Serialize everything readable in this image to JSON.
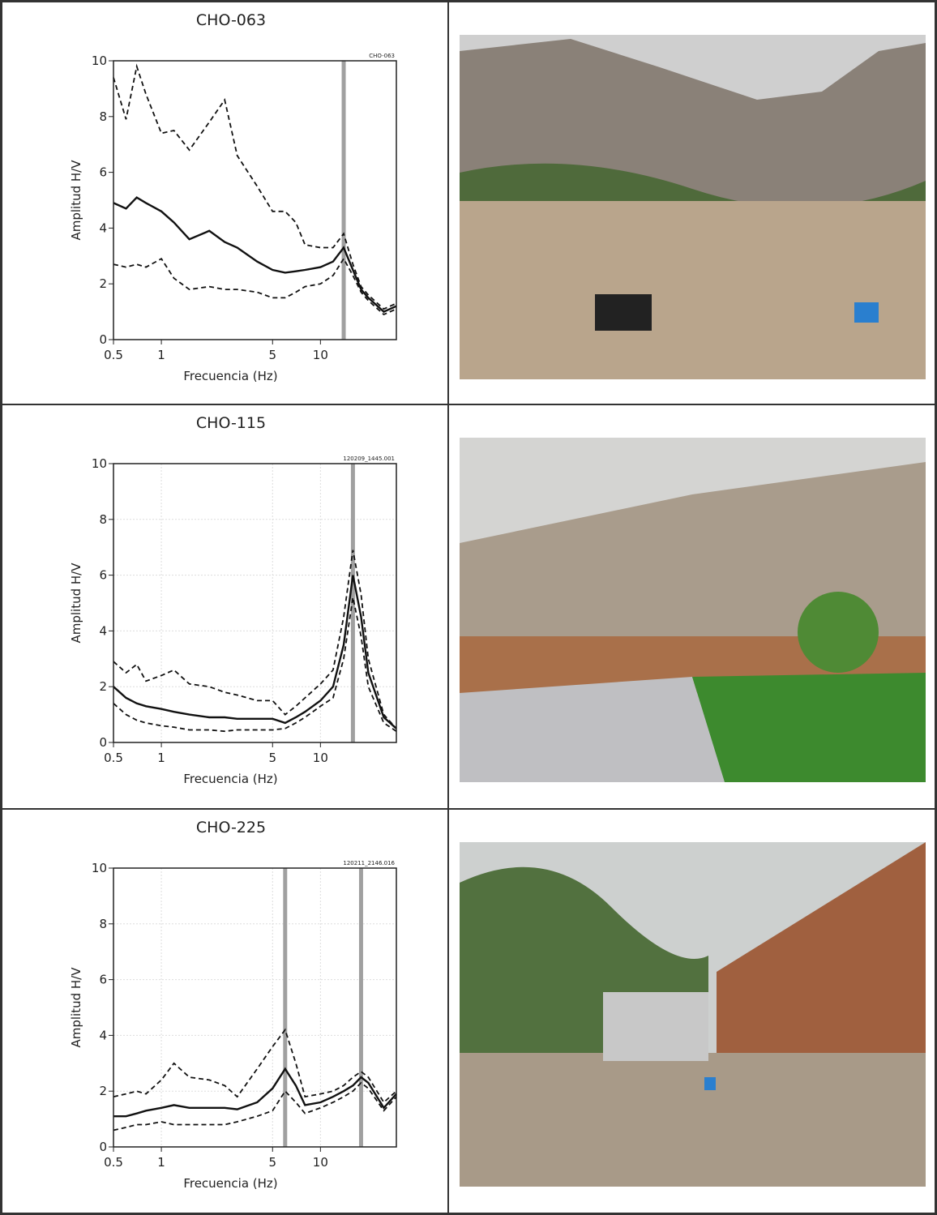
{
  "chart_data": [
    {
      "type": "line",
      "title": "CHO-063",
      "corner_label": "CHO-063",
      "x_label": "Frecuencia (Hz)",
      "y_label": "Amplitud H/V",
      "x": [
        0.5,
        0.6,
        0.7,
        0.8,
        1,
        1.2,
        1.5,
        2,
        2.5,
        3,
        4,
        5,
        6,
        7,
        8,
        10,
        12,
        14,
        16,
        18,
        20,
        25,
        30
      ],
      "series": [
        {
          "color": "#111111",
          "dashed": false,
          "values": [
            4.9,
            4.7,
            5.1,
            4.9,
            4.6,
            4.2,
            3.6,
            3.9,
            3.5,
            3.3,
            2.8,
            2.5,
            2.4,
            2.45,
            2.5,
            2.6,
            2.8,
            3.3,
            2.5,
            1.8,
            1.5,
            1.0,
            1.2
          ]
        },
        {
          "color": "#111111",
          "dashed": true,
          "values": [
            9.4,
            7.9,
            9.8,
            8.8,
            7.4,
            7.5,
            6.8,
            7.8,
            8.6,
            6.6,
            5.5,
            4.6,
            4.6,
            4.2,
            3.4,
            3.3,
            3.3,
            3.8,
            2.7,
            1.9,
            1.6,
            1.1,
            1.3
          ]
        },
        {
          "color": "#111111",
          "dashed": true,
          "values": [
            2.7,
            2.6,
            2.7,
            2.6,
            2.9,
            2.2,
            1.8,
            1.9,
            1.8,
            1.8,
            1.7,
            1.5,
            1.5,
            1.7,
            1.9,
            2.0,
            2.3,
            2.9,
            2.3,
            1.7,
            1.4,
            0.9,
            1.1
          ]
        }
      ],
      "peak_lines": [
        14
      ],
      "peak_color": "#a0a0a0",
      "log_x": true,
      "grid": false,
      "xlim": [
        0.5,
        30
      ],
      "ylim": [
        0,
        10
      ],
      "xticks": [
        0.5,
        1,
        5,
        10
      ],
      "yticks": [
        0,
        2,
        4,
        6,
        8,
        10
      ]
    },
    {
      "type": "line",
      "title": "CHO-115",
      "corner_label": "120209_1445.001",
      "x_label": "Frecuencia (Hz)",
      "y_label": "Amplitud H/V",
      "x": [
        0.5,
        0.6,
        0.7,
        0.8,
        1,
        1.2,
        1.5,
        2,
        2.5,
        3,
        4,
        5,
        6,
        7,
        8,
        10,
        12,
        14,
        16,
        18,
        20,
        25,
        30
      ],
      "series": [
        {
          "color": "#111111",
          "dashed": false,
          "values": [
            2.0,
            1.6,
            1.4,
            1.3,
            1.2,
            1.1,
            1.0,
            0.9,
            0.9,
            0.85,
            0.85,
            0.85,
            0.7,
            0.9,
            1.1,
            1.5,
            2.0,
            3.5,
            6.0,
            4.5,
            2.5,
            0.9,
            0.5
          ]
        },
        {
          "color": "#111111",
          "dashed": true,
          "values": [
            2.9,
            2.5,
            2.8,
            2.2,
            2.4,
            2.6,
            2.1,
            2.0,
            1.8,
            1.7,
            1.5,
            1.5,
            1.0,
            1.3,
            1.6,
            2.1,
            2.6,
            4.5,
            6.9,
            5.3,
            3.0,
            1.0,
            0.5
          ]
        },
        {
          "color": "#111111",
          "dashed": true,
          "values": [
            1.4,
            1.0,
            0.8,
            0.7,
            0.6,
            0.55,
            0.45,
            0.45,
            0.4,
            0.45,
            0.45,
            0.45,
            0.5,
            0.7,
            0.9,
            1.3,
            1.6,
            3.0,
            5.2,
            3.8,
            2.0,
            0.7,
            0.4
          ]
        }
      ],
      "peak_lines": [
        16
      ],
      "peak_color": "#a0a0a0",
      "log_x": true,
      "grid": true,
      "xlim": [
        0.5,
        30
      ],
      "ylim": [
        0,
        10
      ],
      "xticks": [
        0.5,
        1,
        5,
        10
      ],
      "yticks": [
        0,
        2,
        4,
        6,
        8,
        10
      ]
    },
    {
      "type": "line",
      "title": "CHO-225",
      "corner_label": "120211_2146.016",
      "x_label": "Frecuencia (Hz)",
      "y_label": "Amplitud H/V",
      "x": [
        0.5,
        0.6,
        0.7,
        0.8,
        1,
        1.2,
        1.5,
        2,
        2.5,
        3,
        4,
        5,
        6,
        7,
        8,
        10,
        12,
        14,
        16,
        18,
        20,
        25,
        30
      ],
      "series": [
        {
          "color": "#111111",
          "dashed": false,
          "values": [
            1.1,
            1.1,
            1.2,
            1.3,
            1.4,
            1.5,
            1.4,
            1.4,
            1.4,
            1.35,
            1.6,
            2.1,
            2.8,
            2.2,
            1.5,
            1.6,
            1.8,
            2.0,
            2.2,
            2.5,
            2.3,
            1.4,
            1.9
          ]
        },
        {
          "color": "#111111",
          "dashed": true,
          "values": [
            1.8,
            1.9,
            2.0,
            1.9,
            2.4,
            3.0,
            2.5,
            2.4,
            2.2,
            1.8,
            2.8,
            3.6,
            4.2,
            3.0,
            1.8,
            1.9,
            2.0,
            2.2,
            2.5,
            2.7,
            2.5,
            1.6,
            2.0
          ]
        },
        {
          "color": "#111111",
          "dashed": true,
          "values": [
            0.6,
            0.7,
            0.8,
            0.8,
            0.9,
            0.8,
            0.8,
            0.8,
            0.8,
            0.9,
            1.1,
            1.3,
            2.0,
            1.6,
            1.2,
            1.4,
            1.6,
            1.8,
            2.0,
            2.3,
            2.1,
            1.3,
            1.8
          ]
        }
      ],
      "peak_lines": [
        6,
        18
      ],
      "peak_color": "#a0a0a0",
      "log_x": true,
      "grid": true,
      "xlim": [
        0.5,
        30
      ],
      "ylim": [
        0,
        10
      ],
      "xticks": [
        0.5,
        1,
        5,
        10
      ],
      "yticks": [
        0,
        2,
        4,
        6,
        8,
        10
      ]
    }
  ]
}
